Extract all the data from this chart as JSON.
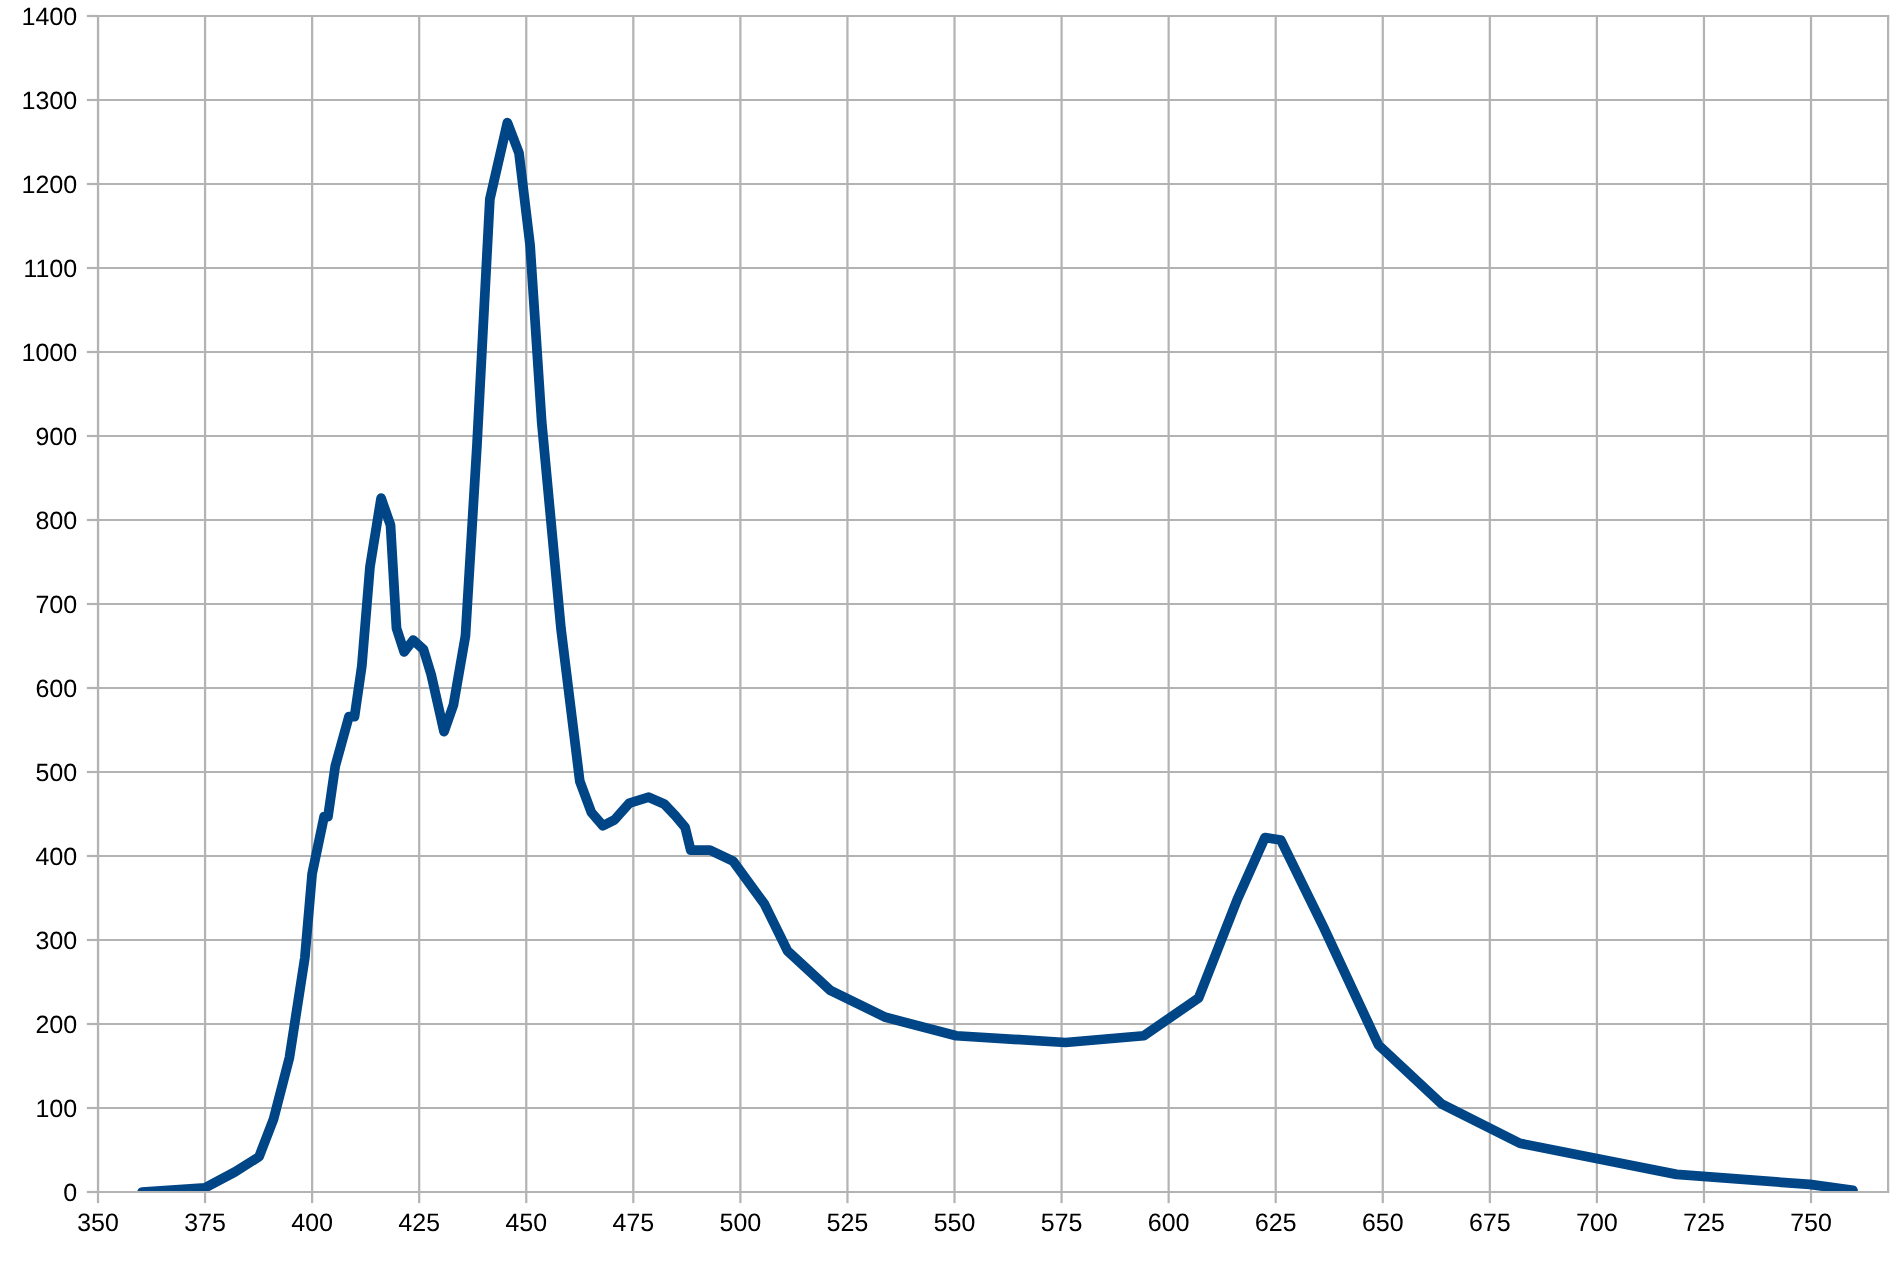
{
  "chart_data": {
    "type": "line",
    "x": [
      360.3,
      375,
      382,
      387.6,
      391,
      394.7,
      398.3,
      400,
      402.8,
      403.7,
      405.4,
      408.6,
      409.9,
      411.6,
      413.5,
      416.1,
      418.3,
      419.7,
      421.5,
      423.6,
      426,
      427.8,
      430.8,
      433,
      435.8,
      438.5,
      441.5,
      445.6,
      448.3,
      450.9,
      453.6,
      458.1,
      462.5,
      465.2,
      467.9,
      470.6,
      474.1,
      478.6,
      482.2,
      484.8,
      487.1,
      488.4,
      492.9,
      498.3,
      505.6,
      511,
      521,
      533.9,
      550.4,
      575.9,
      594.2,
      607,
      616,
      622.5,
      626.2,
      636.2,
      649,
      663.7,
      682,
      718.6,
      749.7,
      759.8
    ],
    "series": [
      {
        "color": "#004586",
        "values": [
          0,
          5,
          24,
          42,
          87,
          160,
          279,
          379,
          447,
          447,
          507,
          566,
          566,
          626,
          744,
          826,
          794,
          671,
          643,
          657,
          646,
          616,
          548,
          580,
          662,
          890,
          1182,
          1273,
          1237,
          1127,
          917,
          671,
          489,
          452,
          436,
          443,
          463,
          470,
          462,
          448,
          434,
          407,
          407,
          394,
          343,
          287,
          240,
          208,
          186,
          178,
          186,
          231,
          348,
          422,
          419,
          315,
          175,
          105,
          58,
          21,
          9,
          2
        ]
      }
    ],
    "xlim": [
      350,
      768
    ],
    "xticks": [
      350,
      375,
      400,
      425,
      450,
      475,
      500,
      525,
      550,
      575,
      600,
      625,
      650,
      675,
      700,
      725,
      750
    ],
    "ylim": [
      0,
      1400
    ],
    "yticks": [
      0,
      100,
      200,
      300,
      400,
      500,
      600,
      700,
      800,
      900,
      1000,
      1100,
      1200,
      1300,
      1400
    ],
    "grid": true,
    "marker": "none",
    "line_style": "solid",
    "legend": false
  }
}
